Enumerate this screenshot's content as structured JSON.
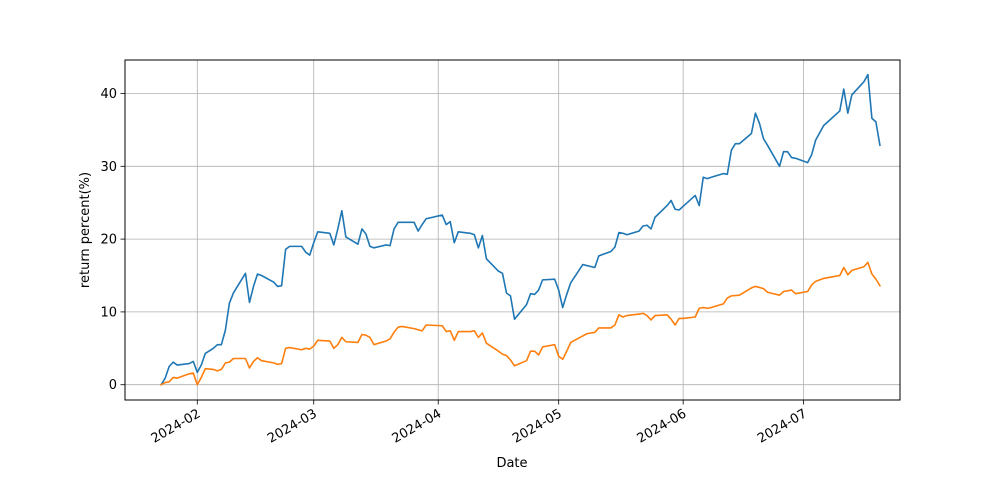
{
  "chart_data": {
    "type": "line",
    "title": "",
    "xlabel": "Date",
    "ylabel": "return percent(%)",
    "x_axis": {
      "kind": "date",
      "range": [
        "2024-01-14",
        "2024-07-25"
      ],
      "ticks": [
        {
          "date": "2024-02-01",
          "label": "2024-02"
        },
        {
          "date": "2024-03-01",
          "label": "2024-03"
        },
        {
          "date": "2024-04-01",
          "label": "2024-04"
        },
        {
          "date": "2024-05-01",
          "label": "2024-05"
        },
        {
          "date": "2024-06-01",
          "label": "2024-06"
        },
        {
          "date": "2024-07-01",
          "label": "2024-07"
        }
      ]
    },
    "ylim": [
      -2.1,
      44.6
    ],
    "yticks": [
      0,
      10,
      20,
      30,
      40
    ],
    "grid": true,
    "legend": "none",
    "series": [
      {
        "color": "#1f77b4",
        "points": [
          [
            "2024-01-23",
            0.0
          ],
          [
            "2024-01-24",
            0.9
          ],
          [
            "2024-01-25",
            2.5
          ],
          [
            "2024-01-26",
            3.1
          ],
          [
            "2024-01-27",
            2.7
          ],
          [
            "2024-01-30",
            2.9
          ],
          [
            "2024-01-31",
            3.2
          ],
          [
            "2024-02-01",
            1.7
          ],
          [
            "2024-02-02",
            2.7
          ],
          [
            "2024-02-03",
            4.3
          ],
          [
            "2024-02-05",
            5.0
          ],
          [
            "2024-02-06",
            5.5
          ],
          [
            "2024-02-07",
            5.5
          ],
          [
            "2024-02-08",
            7.5
          ],
          [
            "2024-02-09",
            11.2
          ],
          [
            "2024-02-10",
            12.6
          ],
          [
            "2024-02-13",
            15.3
          ],
          [
            "2024-02-14",
            11.3
          ],
          [
            "2024-02-15",
            13.5
          ],
          [
            "2024-02-16",
            15.2
          ],
          [
            "2024-02-17",
            15.0
          ],
          [
            "2024-02-20",
            14.1
          ],
          [
            "2024-02-21",
            13.5
          ],
          [
            "2024-02-22",
            13.6
          ],
          [
            "2024-02-23",
            18.6
          ],
          [
            "2024-02-24",
            19.0
          ],
          [
            "2024-02-27",
            19.0
          ],
          [
            "2024-02-28",
            18.2
          ],
          [
            "2024-02-29",
            17.8
          ],
          [
            "2024-03-01",
            19.5
          ],
          [
            "2024-03-02",
            21.0
          ],
          [
            "2024-03-05",
            20.8
          ],
          [
            "2024-03-06",
            19.2
          ],
          [
            "2024-03-07",
            21.4
          ],
          [
            "2024-03-08",
            23.9
          ],
          [
            "2024-03-09",
            20.3
          ],
          [
            "2024-03-12",
            19.3
          ],
          [
            "2024-03-13",
            21.4
          ],
          [
            "2024-03-14",
            20.7
          ],
          [
            "2024-03-15",
            19.0
          ],
          [
            "2024-03-16",
            18.8
          ],
          [
            "2024-03-19",
            19.2
          ],
          [
            "2024-03-20",
            19.1
          ],
          [
            "2024-03-21",
            21.4
          ],
          [
            "2024-03-22",
            22.3
          ],
          [
            "2024-03-26",
            22.3
          ],
          [
            "2024-03-27",
            21.1
          ],
          [
            "2024-03-28",
            22.0
          ],
          [
            "2024-03-29",
            22.8
          ],
          [
            "2024-04-02",
            23.3
          ],
          [
            "2024-04-03",
            22.0
          ],
          [
            "2024-04-04",
            22.4
          ],
          [
            "2024-04-05",
            19.5
          ],
          [
            "2024-04-06",
            21.0
          ],
          [
            "2024-04-09",
            20.8
          ],
          [
            "2024-04-10",
            20.6
          ],
          [
            "2024-04-11",
            18.8
          ],
          [
            "2024-04-12",
            20.5
          ],
          [
            "2024-04-13",
            17.3
          ],
          [
            "2024-04-16",
            15.6
          ],
          [
            "2024-04-17",
            15.3
          ],
          [
            "2024-04-18",
            12.6
          ],
          [
            "2024-04-19",
            12.2
          ],
          [
            "2024-04-20",
            9.0
          ],
          [
            "2024-04-23",
            11.0
          ],
          [
            "2024-04-24",
            12.5
          ],
          [
            "2024-04-25",
            12.4
          ],
          [
            "2024-04-26",
            13.0
          ],
          [
            "2024-04-27",
            14.4
          ],
          [
            "2024-04-30",
            14.5
          ],
          [
            "2024-05-01",
            13.0
          ],
          [
            "2024-05-02",
            10.6
          ],
          [
            "2024-05-03",
            12.4
          ],
          [
            "2024-05-04",
            14.0
          ],
          [
            "2024-05-07",
            16.5
          ],
          [
            "2024-05-10",
            16.1
          ],
          [
            "2024-05-11",
            17.7
          ],
          [
            "2024-05-14",
            18.3
          ],
          [
            "2024-05-15",
            18.9
          ],
          [
            "2024-05-16",
            20.9
          ],
          [
            "2024-05-17",
            20.8
          ],
          [
            "2024-05-18",
            20.6
          ],
          [
            "2024-05-21",
            21.1
          ],
          [
            "2024-05-22",
            21.8
          ],
          [
            "2024-05-23",
            21.9
          ],
          [
            "2024-05-24",
            21.4
          ],
          [
            "2024-05-25",
            23.0
          ],
          [
            "2024-05-28",
            24.6
          ],
          [
            "2024-05-29",
            25.3
          ],
          [
            "2024-05-30",
            24.1
          ],
          [
            "2024-05-31",
            24.0
          ],
          [
            "2024-06-01",
            24.5
          ],
          [
            "2024-06-04",
            26.0
          ],
          [
            "2024-06-05",
            24.6
          ],
          [
            "2024-06-06",
            28.5
          ],
          [
            "2024-06-07",
            28.3
          ],
          [
            "2024-06-08",
            28.5
          ],
          [
            "2024-06-11",
            29.0
          ],
          [
            "2024-06-12",
            28.9
          ],
          [
            "2024-06-13",
            32.2
          ],
          [
            "2024-06-14",
            33.1
          ],
          [
            "2024-06-15",
            33.1
          ],
          [
            "2024-06-18",
            34.5
          ],
          [
            "2024-06-19",
            37.3
          ],
          [
            "2024-06-20",
            35.9
          ],
          [
            "2024-06-21",
            33.8
          ],
          [
            "2024-06-22",
            32.9
          ],
          [
            "2024-06-25",
            30.0
          ],
          [
            "2024-06-26",
            32.0
          ],
          [
            "2024-06-27",
            32.0
          ],
          [
            "2024-06-28",
            31.2
          ],
          [
            "2024-06-29",
            31.1
          ],
          [
            "2024-07-02",
            30.5
          ],
          [
            "2024-07-03",
            31.6
          ],
          [
            "2024-07-04",
            33.6
          ],
          [
            "2024-07-06",
            35.6
          ],
          [
            "2024-07-08",
            36.6
          ],
          [
            "2024-07-10",
            37.6
          ],
          [
            "2024-07-11",
            40.6
          ],
          [
            "2024-07-12",
            37.3
          ],
          [
            "2024-07-13",
            39.8
          ],
          [
            "2024-07-16",
            41.6
          ],
          [
            "2024-07-17",
            42.6
          ],
          [
            "2024-07-18",
            36.6
          ],
          [
            "2024-07-19",
            36.1
          ],
          [
            "2024-07-20",
            32.9
          ]
        ]
      },
      {
        "color": "#ff7f0e",
        "points": [
          [
            "2024-01-23",
            0.0
          ],
          [
            "2024-01-24",
            0.3
          ],
          [
            "2024-01-25",
            0.4
          ],
          [
            "2024-01-26",
            1.0
          ],
          [
            "2024-01-27",
            0.9
          ],
          [
            "2024-01-30",
            1.5
          ],
          [
            "2024-01-31",
            1.6
          ],
          [
            "2024-02-01",
            0.0
          ],
          [
            "2024-02-02",
            1.0
          ],
          [
            "2024-02-03",
            2.2
          ],
          [
            "2024-02-05",
            2.1
          ],
          [
            "2024-02-06",
            1.9
          ],
          [
            "2024-02-07",
            2.1
          ],
          [
            "2024-02-08",
            3.0
          ],
          [
            "2024-02-09",
            3.1
          ],
          [
            "2024-02-10",
            3.6
          ],
          [
            "2024-02-13",
            3.6
          ],
          [
            "2024-02-14",
            2.3
          ],
          [
            "2024-02-15",
            3.2
          ],
          [
            "2024-02-16",
            3.7
          ],
          [
            "2024-02-17",
            3.3
          ],
          [
            "2024-02-20",
            3.0
          ],
          [
            "2024-02-21",
            2.8
          ],
          [
            "2024-02-22",
            2.9
          ],
          [
            "2024-02-23",
            5.0
          ],
          [
            "2024-02-24",
            5.1
          ],
          [
            "2024-02-27",
            4.8
          ],
          [
            "2024-02-28",
            5.0
          ],
          [
            "2024-02-29",
            4.9
          ],
          [
            "2024-03-01",
            5.3
          ],
          [
            "2024-03-02",
            6.1
          ],
          [
            "2024-03-05",
            6.0
          ],
          [
            "2024-03-06",
            5.0
          ],
          [
            "2024-03-07",
            5.5
          ],
          [
            "2024-03-08",
            6.5
          ],
          [
            "2024-03-09",
            5.9
          ],
          [
            "2024-03-12",
            5.8
          ],
          [
            "2024-03-13",
            6.9
          ],
          [
            "2024-03-14",
            6.8
          ],
          [
            "2024-03-15",
            6.5
          ],
          [
            "2024-03-16",
            5.5
          ],
          [
            "2024-03-19",
            6.0
          ],
          [
            "2024-03-20",
            6.3
          ],
          [
            "2024-03-21",
            7.2
          ],
          [
            "2024-03-22",
            7.9
          ],
          [
            "2024-03-23",
            8.0
          ],
          [
            "2024-03-26",
            7.7
          ],
          [
            "2024-03-28",
            7.4
          ],
          [
            "2024-03-29",
            8.2
          ],
          [
            "2024-04-02",
            8.1
          ],
          [
            "2024-04-03",
            7.3
          ],
          [
            "2024-04-04",
            7.4
          ],
          [
            "2024-04-05",
            6.1
          ],
          [
            "2024-04-06",
            7.3
          ],
          [
            "2024-04-09",
            7.3
          ],
          [
            "2024-04-10",
            7.4
          ],
          [
            "2024-04-11",
            6.5
          ],
          [
            "2024-04-12",
            7.1
          ],
          [
            "2024-04-13",
            5.7
          ],
          [
            "2024-04-16",
            4.6
          ],
          [
            "2024-04-17",
            4.2
          ],
          [
            "2024-04-18",
            4.0
          ],
          [
            "2024-04-19",
            3.4
          ],
          [
            "2024-04-20",
            2.6
          ],
          [
            "2024-04-23",
            3.3
          ],
          [
            "2024-04-24",
            4.6
          ],
          [
            "2024-04-25",
            4.6
          ],
          [
            "2024-04-26",
            4.1
          ],
          [
            "2024-04-27",
            5.2
          ],
          [
            "2024-04-30",
            5.5
          ],
          [
            "2024-05-01",
            3.9
          ],
          [
            "2024-05-02",
            3.5
          ],
          [
            "2024-05-03",
            4.6
          ],
          [
            "2024-05-04",
            5.8
          ],
          [
            "2024-05-07",
            6.7
          ],
          [
            "2024-05-08",
            7.0
          ],
          [
            "2024-05-10",
            7.2
          ],
          [
            "2024-05-11",
            7.8
          ],
          [
            "2024-05-14",
            7.8
          ],
          [
            "2024-05-15",
            8.2
          ],
          [
            "2024-05-16",
            9.6
          ],
          [
            "2024-05-17",
            9.3
          ],
          [
            "2024-05-18",
            9.5
          ],
          [
            "2024-05-21",
            9.7
          ],
          [
            "2024-05-22",
            9.8
          ],
          [
            "2024-05-23",
            9.5
          ],
          [
            "2024-05-24",
            8.9
          ],
          [
            "2024-05-25",
            9.5
          ],
          [
            "2024-05-28",
            9.6
          ],
          [
            "2024-05-29",
            9.0
          ],
          [
            "2024-05-30",
            8.2
          ],
          [
            "2024-05-31",
            9.1
          ],
          [
            "2024-06-01",
            9.1
          ],
          [
            "2024-06-04",
            9.3
          ],
          [
            "2024-06-05",
            10.5
          ],
          [
            "2024-06-06",
            10.6
          ],
          [
            "2024-06-07",
            10.5
          ],
          [
            "2024-06-08",
            10.6
          ],
          [
            "2024-06-11",
            11.1
          ],
          [
            "2024-06-12",
            11.9
          ],
          [
            "2024-06-13",
            12.2
          ],
          [
            "2024-06-15",
            12.3
          ],
          [
            "2024-06-18",
            13.3
          ],
          [
            "2024-06-19",
            13.5
          ],
          [
            "2024-06-21",
            13.2
          ],
          [
            "2024-06-22",
            12.7
          ],
          [
            "2024-06-25",
            12.3
          ],
          [
            "2024-06-26",
            12.8
          ],
          [
            "2024-06-28",
            13.0
          ],
          [
            "2024-06-29",
            12.5
          ],
          [
            "2024-07-02",
            12.8
          ],
          [
            "2024-07-03",
            13.7
          ],
          [
            "2024-07-04",
            14.2
          ],
          [
            "2024-07-06",
            14.6
          ],
          [
            "2024-07-08",
            14.8
          ],
          [
            "2024-07-10",
            15.0
          ],
          [
            "2024-07-11",
            16.1
          ],
          [
            "2024-07-12",
            15.1
          ],
          [
            "2024-07-13",
            15.7
          ],
          [
            "2024-07-16",
            16.2
          ],
          [
            "2024-07-17",
            16.8
          ],
          [
            "2024-07-18",
            15.2
          ],
          [
            "2024-07-19",
            14.5
          ],
          [
            "2024-07-20",
            13.6
          ]
        ]
      }
    ]
  }
}
